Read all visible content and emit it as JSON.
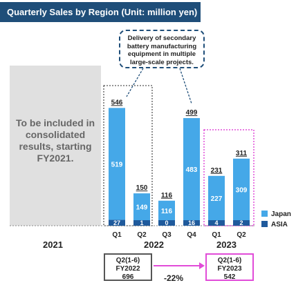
{
  "title": "Quarterly Sales by Region (Unit: million yen)",
  "note": "Delivery of secondary battery manufacturing equipment in multiple large-scale projects.",
  "placeholder": {
    "year": "2021",
    "text": "To be included in consolidated results, starting FY2021."
  },
  "colors": {
    "japan": "#45a8e8",
    "asia": "#1f5a9c",
    "highlight": "#e14bd8",
    "note_border": "#1f4e79"
  },
  "chart_data": {
    "type": "bar",
    "stacked": true,
    "categories": [
      "Q1",
      "Q2",
      "Q3",
      "Q4",
      "Q1",
      "Q2"
    ],
    "years": [
      {
        "label": "2022",
        "categories": [
          "Q1",
          "Q2",
          "Q3",
          "Q4"
        ]
      },
      {
        "label": "2023",
        "categories": [
          "Q1",
          "Q2"
        ]
      }
    ],
    "series": [
      {
        "name": "Japan",
        "values": [
          519,
          149,
          116,
          483,
          227,
          309
        ]
      },
      {
        "name": "ASIA",
        "values": [
          27,
          1,
          0,
          16,
          4,
          2
        ]
      }
    ],
    "totals": [
      546,
      150,
      116,
      499,
      231,
      311
    ],
    "legend_position": "right",
    "ylim": [
      0,
      560
    ]
  },
  "summary": {
    "fy2022": {
      "period": "Q2(1-6)",
      "label": "FY2022",
      "value": "696"
    },
    "fy2023": {
      "period": "Q2(1-6)",
      "label": "FY2023",
      "value": "542"
    },
    "change": "-22%"
  }
}
